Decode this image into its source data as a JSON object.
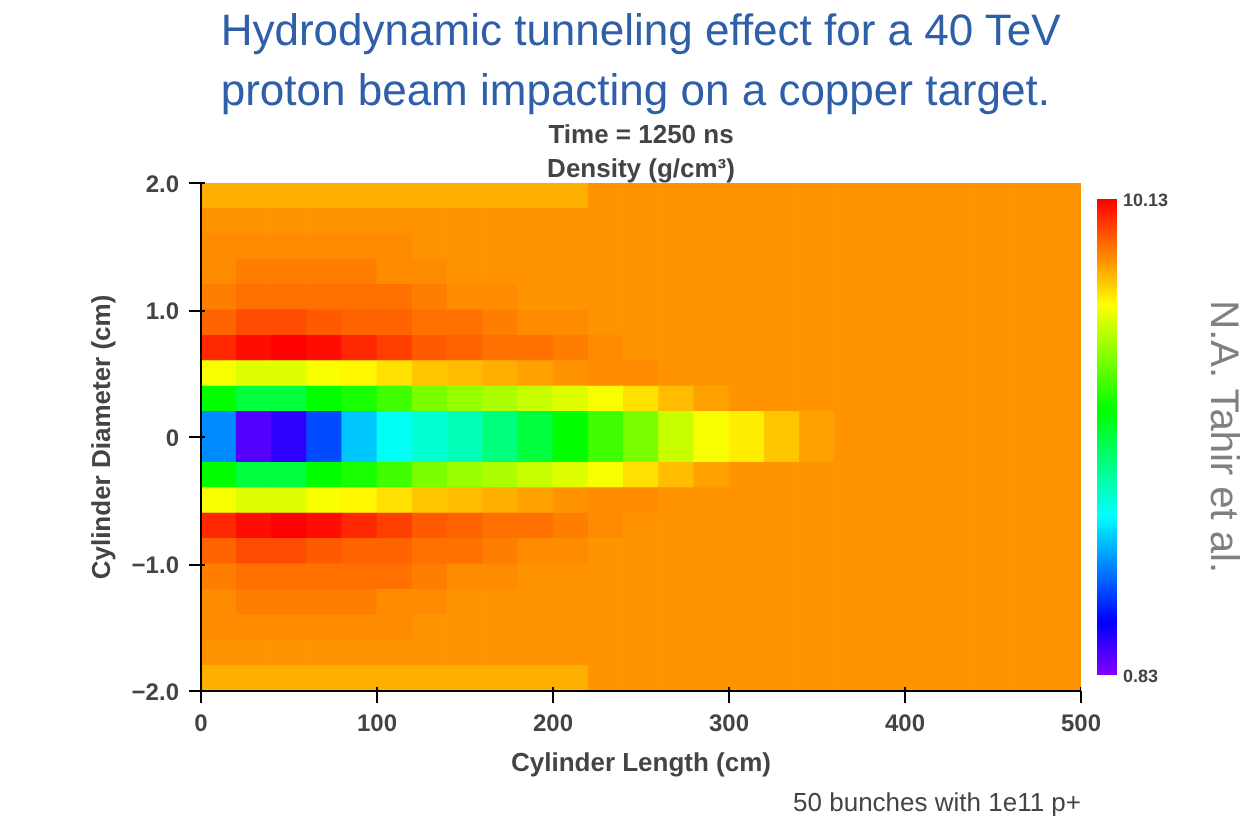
{
  "chart_data": {
    "type": "heatmap",
    "title": "Hydrodynamic tunneling effect for a 40 TeV proton beam impacting on a copper target.",
    "subtitle": "Time = 1250 ns",
    "clabel": "Density (g/cm³)",
    "xlabel": "Cylinder Length (cm)",
    "ylabel": "Cylinder Diameter (cm)",
    "annotations": [
      "N.A. Tahir et al.",
      "50 bunches with 1e11 p+"
    ],
    "x": [
      10,
      30,
      50,
      70,
      90,
      110,
      130,
      150,
      170,
      190,
      210,
      230,
      250,
      270,
      290,
      310,
      330,
      350,
      370,
      390,
      410,
      430,
      450,
      470,
      490
    ],
    "y": [
      1.9,
      1.7,
      1.5,
      1.3,
      1.1,
      0.9,
      0.7,
      0.5,
      0.3,
      0.1,
      -0.1,
      -0.3,
      -0.5,
      -0.7,
      -0.9,
      -1.1,
      -1.3,
      -1.5,
      -1.7,
      -1.9
    ],
    "xlim": [
      0,
      500
    ],
    "ylim": [
      -2,
      2
    ],
    "xticks": [
      0,
      100,
      200,
      300,
      400,
      500
    ],
    "yticks": [
      {
        "value": -2,
        "label": "−2.0"
      },
      {
        "value": -1,
        "label": "−1.0"
      },
      0,
      {
        "value": 1,
        "label": "1.0"
      },
      {
        "value": 2,
        "label": "2.0"
      }
    ],
    "clim": [
      0.83,
      10.13
    ],
    "cticks": [
      0.83,
      10.13
    ],
    "cells": [
      [
        8.7,
        8.7,
        8.7,
        8.7,
        8.7,
        8.7,
        8.7,
        8.7,
        8.7,
        8.7,
        8.7,
        8.9,
        8.9,
        8.9,
        8.9,
        8.9,
        8.9,
        8.9,
        8.9,
        8.9,
        8.9,
        8.9,
        8.9,
        8.9,
        8.9
      ],
      [
        8.9,
        8.9,
        8.9,
        8.9,
        8.9,
        8.9,
        8.9,
        8.9,
        8.9,
        8.9,
        8.9,
        8.9,
        8.9,
        8.9,
        8.9,
        8.9,
        8.9,
        8.9,
        8.9,
        8.9,
        8.9,
        8.9,
        8.9,
        8.9,
        8.9
      ],
      [
        9.0,
        9.0,
        9.0,
        9.0,
        9.0,
        9.0,
        8.9,
        8.9,
        8.9,
        8.9,
        8.9,
        8.9,
        8.9,
        8.9,
        8.9,
        8.9,
        8.9,
        8.9,
        8.9,
        8.9,
        8.9,
        8.9,
        8.9,
        8.9,
        8.9
      ],
      [
        9.0,
        9.1,
        9.1,
        9.1,
        9.1,
        9.0,
        9.0,
        8.9,
        8.9,
        8.9,
        8.9,
        8.9,
        8.9,
        8.9,
        8.9,
        8.9,
        8.9,
        8.9,
        8.9,
        8.9,
        8.9,
        8.9,
        8.9,
        8.9,
        8.9
      ],
      [
        9.1,
        9.2,
        9.2,
        9.2,
        9.2,
        9.2,
        9.1,
        9.0,
        9.0,
        8.9,
        8.9,
        8.9,
        8.9,
        8.9,
        8.9,
        8.9,
        8.9,
        8.9,
        8.9,
        8.9,
        8.9,
        8.9,
        8.9,
        8.9,
        8.9
      ],
      [
        9.3,
        9.5,
        9.5,
        9.4,
        9.3,
        9.3,
        9.2,
        9.2,
        9.1,
        9.0,
        9.0,
        8.9,
        8.9,
        8.9,
        8.9,
        8.9,
        8.9,
        8.9,
        8.9,
        8.9,
        8.9,
        8.9,
        8.9,
        8.9,
        8.9
      ],
      [
        9.8,
        10.0,
        10.1,
        10.0,
        9.8,
        9.6,
        9.4,
        9.3,
        9.2,
        9.2,
        9.1,
        9.0,
        8.9,
        8.9,
        8.9,
        8.9,
        8.9,
        8.9,
        8.9,
        8.9,
        8.9,
        8.9,
        8.9,
        8.9,
        8.9
      ],
      [
        8.0,
        7.8,
        7.8,
        8.0,
        8.1,
        8.3,
        8.5,
        8.6,
        8.7,
        8.8,
        8.9,
        9.0,
        9.0,
        8.9,
        8.9,
        8.9,
        8.9,
        8.9,
        8.9,
        8.9,
        8.9,
        8.9,
        8.9,
        8.9,
        8.9
      ],
      [
        6.0,
        5.5,
        5.5,
        6.0,
        6.2,
        6.5,
        7.0,
        7.2,
        7.4,
        7.6,
        7.8,
        8.0,
        8.3,
        8.6,
        8.8,
        8.9,
        8.9,
        8.9,
        8.9,
        8.9,
        8.9,
        8.9,
        8.9,
        8.9,
        8.9
      ],
      [
        3.0,
        1.2,
        1.5,
        2.5,
        3.5,
        4.0,
        4.3,
        4.5,
        5.0,
        5.5,
        6.0,
        6.5,
        7.0,
        7.6,
        8.0,
        8.2,
        8.5,
        8.8,
        8.9,
        8.9,
        8.9,
        8.9,
        8.9,
        8.9,
        8.9
      ],
      [
        3.0,
        1.2,
        1.5,
        2.5,
        3.5,
        4.0,
        4.3,
        4.5,
        5.0,
        5.5,
        6.0,
        6.5,
        7.0,
        7.6,
        8.0,
        8.2,
        8.5,
        8.8,
        8.9,
        8.9,
        8.9,
        8.9,
        8.9,
        8.9,
        8.9
      ],
      [
        6.0,
        5.5,
        5.5,
        6.0,
        6.2,
        6.5,
        7.0,
        7.2,
        7.4,
        7.6,
        7.8,
        8.0,
        8.3,
        8.6,
        8.8,
        8.9,
        8.9,
        8.9,
        8.9,
        8.9,
        8.9,
        8.9,
        8.9,
        8.9,
        8.9
      ],
      [
        8.0,
        7.8,
        7.8,
        8.0,
        8.1,
        8.3,
        8.5,
        8.6,
        8.7,
        8.8,
        8.9,
        9.0,
        9.0,
        8.9,
        8.9,
        8.9,
        8.9,
        8.9,
        8.9,
        8.9,
        8.9,
        8.9,
        8.9,
        8.9,
        8.9
      ],
      [
        9.8,
        10.0,
        10.1,
        10.0,
        9.8,
        9.6,
        9.4,
        9.3,
        9.2,
        9.2,
        9.1,
        9.0,
        8.9,
        8.9,
        8.9,
        8.9,
        8.9,
        8.9,
        8.9,
        8.9,
        8.9,
        8.9,
        8.9,
        8.9,
        8.9
      ],
      [
        9.3,
        9.5,
        9.5,
        9.4,
        9.3,
        9.3,
        9.2,
        9.2,
        9.1,
        9.0,
        9.0,
        8.9,
        8.9,
        8.9,
        8.9,
        8.9,
        8.9,
        8.9,
        8.9,
        8.9,
        8.9,
        8.9,
        8.9,
        8.9,
        8.9
      ],
      [
        9.1,
        9.2,
        9.2,
        9.2,
        9.2,
        9.2,
        9.1,
        9.0,
        9.0,
        8.9,
        8.9,
        8.9,
        8.9,
        8.9,
        8.9,
        8.9,
        8.9,
        8.9,
        8.9,
        8.9,
        8.9,
        8.9,
        8.9,
        8.9,
        8.9
      ],
      [
        9.0,
        9.1,
        9.1,
        9.1,
        9.1,
        9.0,
        9.0,
        8.9,
        8.9,
        8.9,
        8.9,
        8.9,
        8.9,
        8.9,
        8.9,
        8.9,
        8.9,
        8.9,
        8.9,
        8.9,
        8.9,
        8.9,
        8.9,
        8.9,
        8.9
      ],
      [
        9.0,
        9.0,
        9.0,
        9.0,
        9.0,
        9.0,
        8.9,
        8.9,
        8.9,
        8.9,
        8.9,
        8.9,
        8.9,
        8.9,
        8.9,
        8.9,
        8.9,
        8.9,
        8.9,
        8.9,
        8.9,
        8.9,
        8.9,
        8.9,
        8.9
      ],
      [
        8.9,
        8.9,
        8.9,
        8.9,
        8.9,
        8.9,
        8.9,
        8.9,
        8.9,
        8.9,
        8.9,
        8.9,
        8.9,
        8.9,
        8.9,
        8.9,
        8.9,
        8.9,
        8.9,
        8.9,
        8.9,
        8.9,
        8.9,
        8.9,
        8.9
      ],
      [
        8.7,
        8.7,
        8.7,
        8.7,
        8.7,
        8.7,
        8.7,
        8.7,
        8.7,
        8.7,
        8.7,
        8.9,
        8.9,
        8.9,
        8.9,
        8.9,
        8.9,
        8.9,
        8.9,
        8.9,
        8.9,
        8.9,
        8.9,
        8.9,
        8.9
      ]
    ]
  }
}
